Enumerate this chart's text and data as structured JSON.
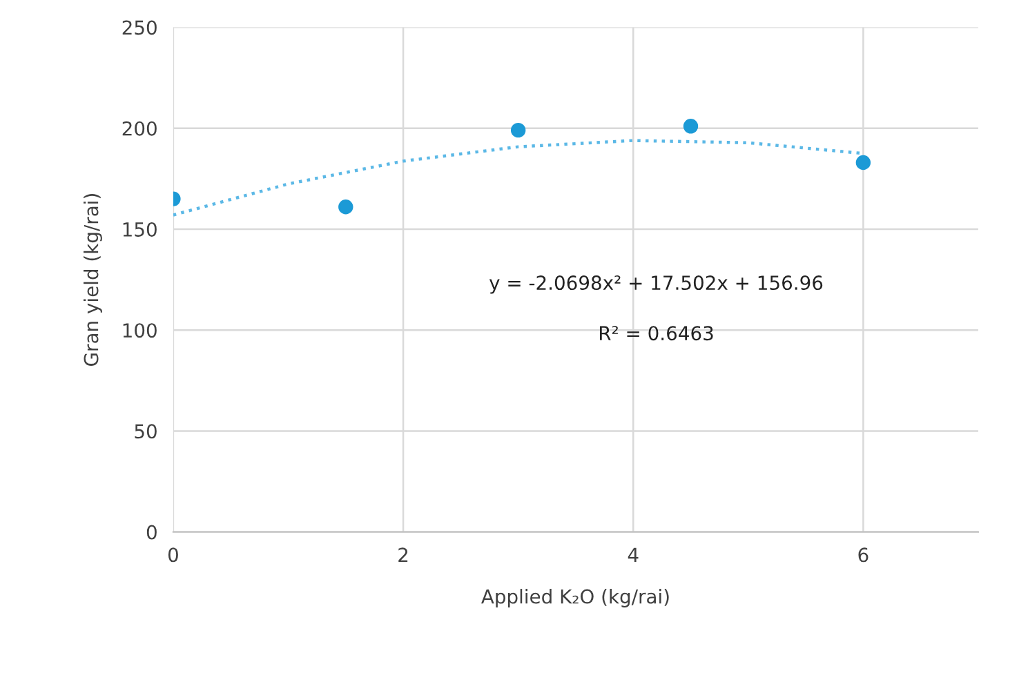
{
  "chart_data": {
    "type": "scatter",
    "xlabel": "Applied K₂O (kg/rai)",
    "ylabel": "Gran yield (kg/rai)",
    "xlim": [
      0,
      7
    ],
    "xticks": [
      0,
      2,
      4,
      6
    ],
    "ylim": [
      0,
      250
    ],
    "yticks": [
      0,
      50,
      100,
      150,
      200,
      250
    ],
    "grid": true,
    "marker": "circle",
    "series": [
      {
        "color": "#1c9ad6",
        "x": [
          0,
          1.5,
          3,
          4.5,
          6
        ],
        "values": [
          165,
          161,
          199,
          201,
          183
        ]
      },
      {
        "type": "line",
        "color": "#5bb8e6",
        "line_style": "dotted",
        "marker": "none",
        "x": [
          0,
          1,
          2,
          3,
          4,
          5,
          6
        ],
        "values": [
          157.0,
          172.4,
          183.7,
          190.8,
          193.9,
          192.8,
          187.5
        ]
      }
    ],
    "annotations": [
      "y = -2.0698x² + 17.502x + 156.96",
      "R² = 0.6463"
    ]
  }
}
